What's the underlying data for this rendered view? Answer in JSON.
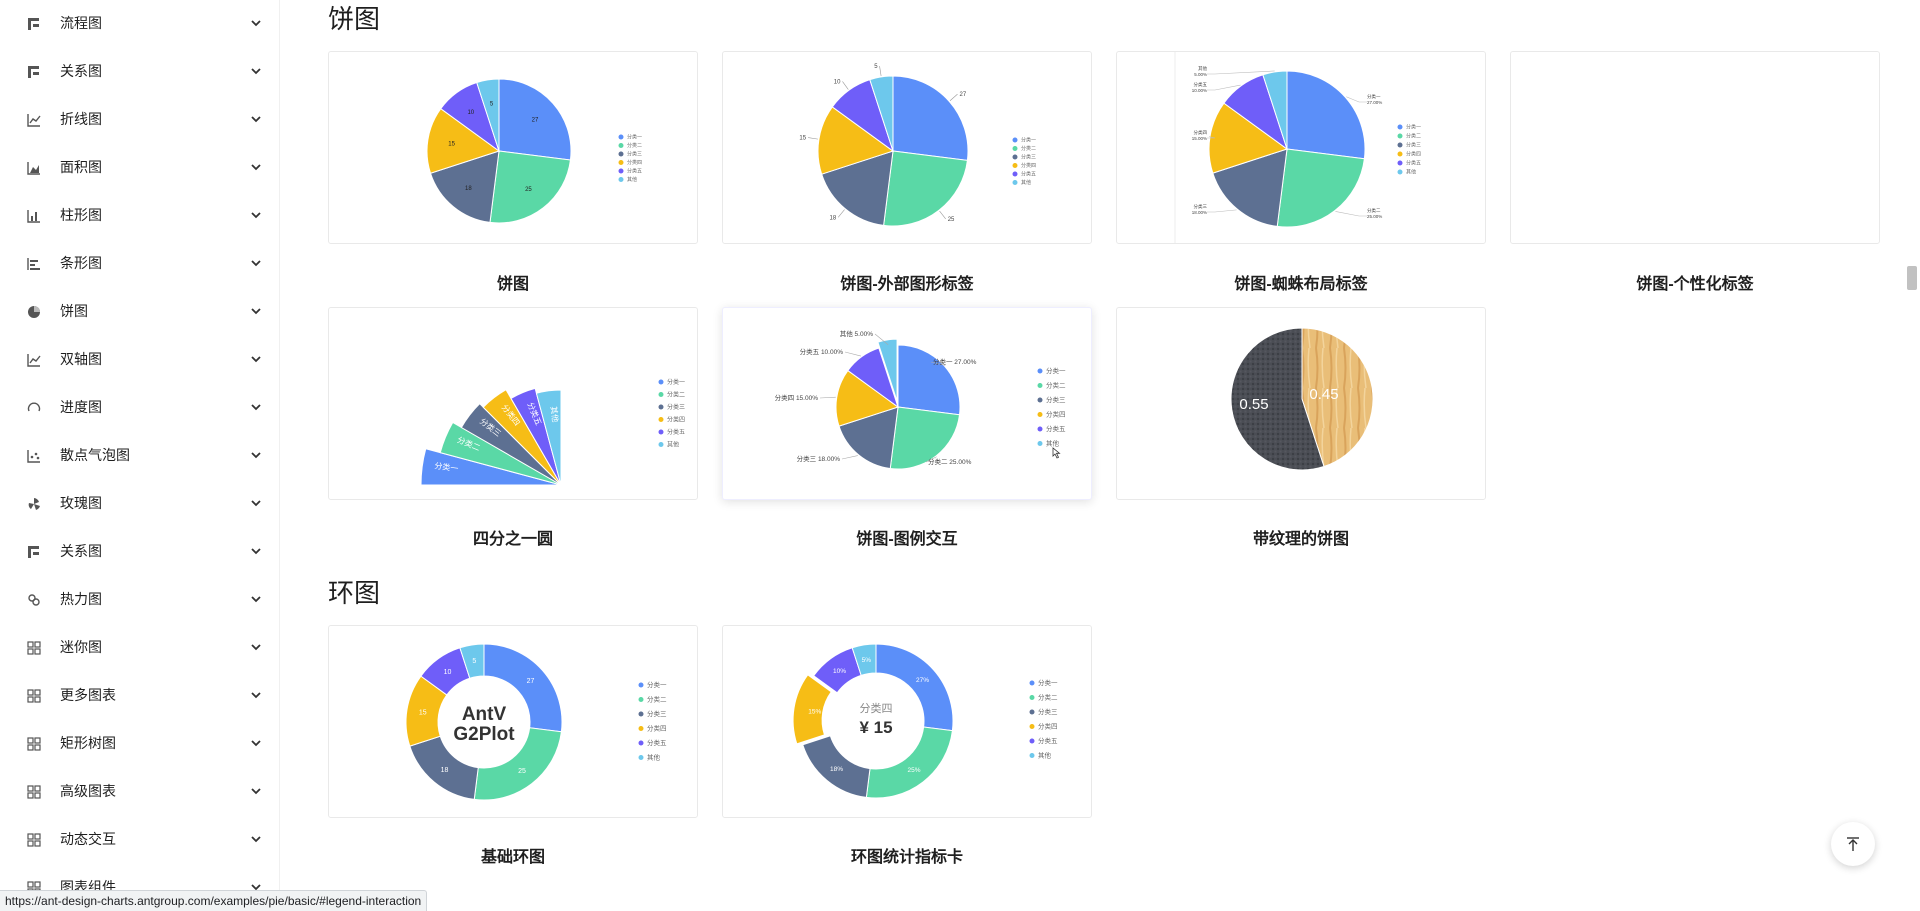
{
  "sidebar": {
    "items": [
      {
        "label": "流程图",
        "icon": "flow-icon"
      },
      {
        "label": "关系图",
        "icon": "relation-icon"
      },
      {
        "label": "折线图",
        "icon": "line-chart-icon"
      },
      {
        "label": "面积图",
        "icon": "area-chart-icon"
      },
      {
        "label": "柱形图",
        "icon": "column-chart-icon"
      },
      {
        "label": "条形图",
        "icon": "bar-chart-icon"
      },
      {
        "label": "饼图",
        "icon": "pie-chart-icon"
      },
      {
        "label": "双轴图",
        "icon": "dual-axes-icon"
      },
      {
        "label": "进度图",
        "icon": "progress-icon"
      },
      {
        "label": "散点气泡图",
        "icon": "scatter-icon"
      },
      {
        "label": "玫瑰图",
        "icon": "rose-icon"
      },
      {
        "label": "关系图",
        "icon": "relation-icon"
      },
      {
        "label": "热力图",
        "icon": "heatmap-icon"
      },
      {
        "label": "迷你图",
        "icon": "tiny-chart-icon"
      },
      {
        "label": "更多图表",
        "icon": "more-charts-icon"
      },
      {
        "label": "矩形树图",
        "icon": "treemap-icon"
      },
      {
        "label": "高级图表",
        "icon": "advanced-icon"
      },
      {
        "label": "动态交互",
        "icon": "interaction-icon"
      },
      {
        "label": "图表组件",
        "icon": "component-icon"
      }
    ]
  },
  "sections": [
    {
      "title": "饼图",
      "cards": [
        "饼图",
        "饼图-外部图形标签",
        "饼图-蜘蛛布局标签",
        "饼图-个性化标签",
        "四分之一圆",
        "饼图-图例交互",
        "带纹理的饼图"
      ]
    },
    {
      "title": "环图",
      "cards": [
        "基础环图",
        "环图统计指标卡"
      ]
    }
  ],
  "legend": {
    "six": [
      "分类一",
      "分类二",
      "分类三",
      "分类四",
      "分类五",
      "其他"
    ]
  },
  "colors": [
    "#5B8FF9",
    "#5AD8A6",
    "#5D7092",
    "#F6BD16",
    "#6F5EF9",
    "#6DC8EC",
    "#E8684A"
  ],
  "chart_data": [
    {
      "type": "pie",
      "name": "饼图",
      "categories": [
        "分类一",
        "分类二",
        "分类三",
        "分类四",
        "分类五",
        "其他"
      ],
      "values": [
        27,
        25,
        18,
        15,
        10,
        5
      ]
    },
    {
      "type": "pie",
      "name": "饼图-外部图形标签",
      "categories": [
        "分类一",
        "分类二",
        "分类三",
        "分类四",
        "分类五",
        "其他"
      ],
      "values": [
        27,
        25,
        18,
        15,
        10,
        5
      ]
    },
    {
      "type": "pie",
      "name": "饼图-蜘蛛布局标签",
      "categories": [
        "分类一",
        "分类二",
        "分类三",
        "分类四",
        "分类五",
        "其他"
      ],
      "values": [
        27,
        25,
        18,
        15,
        10,
        5
      ]
    },
    {
      "type": "pie",
      "name": "饼图-图例交互",
      "categories": [
        "分类一",
        "分类二",
        "分类三",
        "分类四",
        "分类五",
        "其他"
      ],
      "values": [
        27,
        25,
        18,
        15,
        10,
        5
      ]
    },
    {
      "type": "pie",
      "name": "带纹理的饼图",
      "values": [
        0.45,
        0.55
      ]
    },
    {
      "type": "pie",
      "name": "基础环图",
      "categories": [
        "分类一",
        "分类二",
        "分类三",
        "分类四",
        "分类五",
        "其他"
      ],
      "values": [
        27,
        25,
        18,
        15,
        10,
        5
      ],
      "center": "AntV G2Plot"
    },
    {
      "type": "pie",
      "name": "环图统计指标卡",
      "categories": [
        "分类一",
        "分类二",
        "分类三",
        "分类四",
        "分类五",
        "其他"
      ],
      "values": [
        27,
        25,
        18,
        15,
        10,
        5
      ],
      "center_title": "分类四",
      "center_value": "¥ 15"
    }
  ],
  "interaction_labels": [
    "分类一 27.00%",
    "分类二 25.00%",
    "分类三 18.00%",
    "分类四 15.00%",
    "分类五 10.00%",
    "其他 5.00%"
  ],
  "spider_labels": [
    "分类一",
    "27.00%",
    "分类二",
    "25.00%",
    "分类三",
    "18.00%",
    "分类四",
    "15.00%",
    "分类五",
    "10.00%",
    "其他",
    "5.00%"
  ],
  "donut_center": {
    "line1": "AntV",
    "line2": "G2Plot"
  },
  "statistic_card": {
    "title": "分类四",
    "value": "¥ 15"
  },
  "texture_values": [
    "0.55",
    "0.45"
  ],
  "status_url": "https://ant-design-charts.antgroup.com/examples/pie/basic/#legend-interaction"
}
